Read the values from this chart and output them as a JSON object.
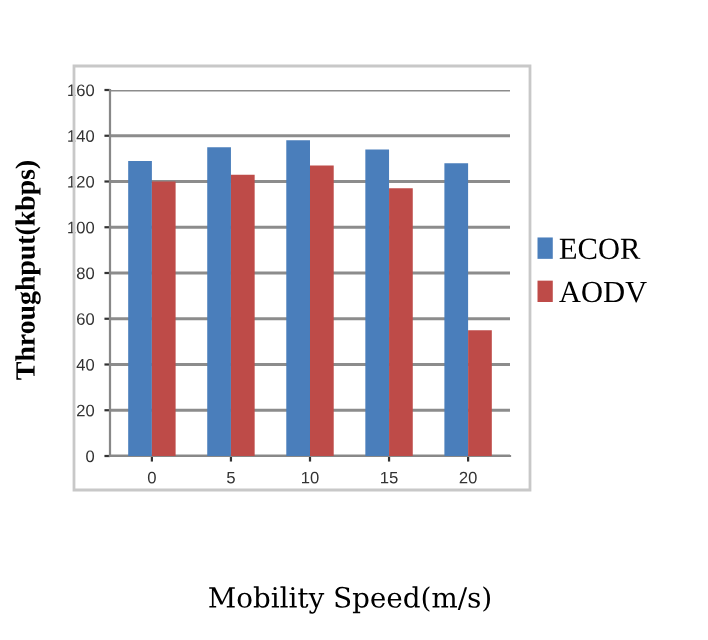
{
  "chart_data": {
    "type": "bar",
    "xlabel": "Mobility Speed(m/s)",
    "ylabel": "Throughput(kbps)",
    "categories": [
      "0",
      "5",
      "10",
      "15",
      "20"
    ],
    "series": [
      {
        "name": "ECOR",
        "color": "#4a7ebb",
        "values": [
          129,
          135,
          138,
          134,
          128
        ]
      },
      {
        "name": "AODV",
        "color": "#be4b48",
        "values": [
          120,
          123,
          127,
          117,
          55
        ]
      }
    ],
    "ylim": [
      0,
      160
    ],
    "yticks": [
      0,
      20,
      40,
      60,
      80,
      100,
      120,
      140,
      160
    ],
    "grid": "y",
    "legend": "right"
  }
}
